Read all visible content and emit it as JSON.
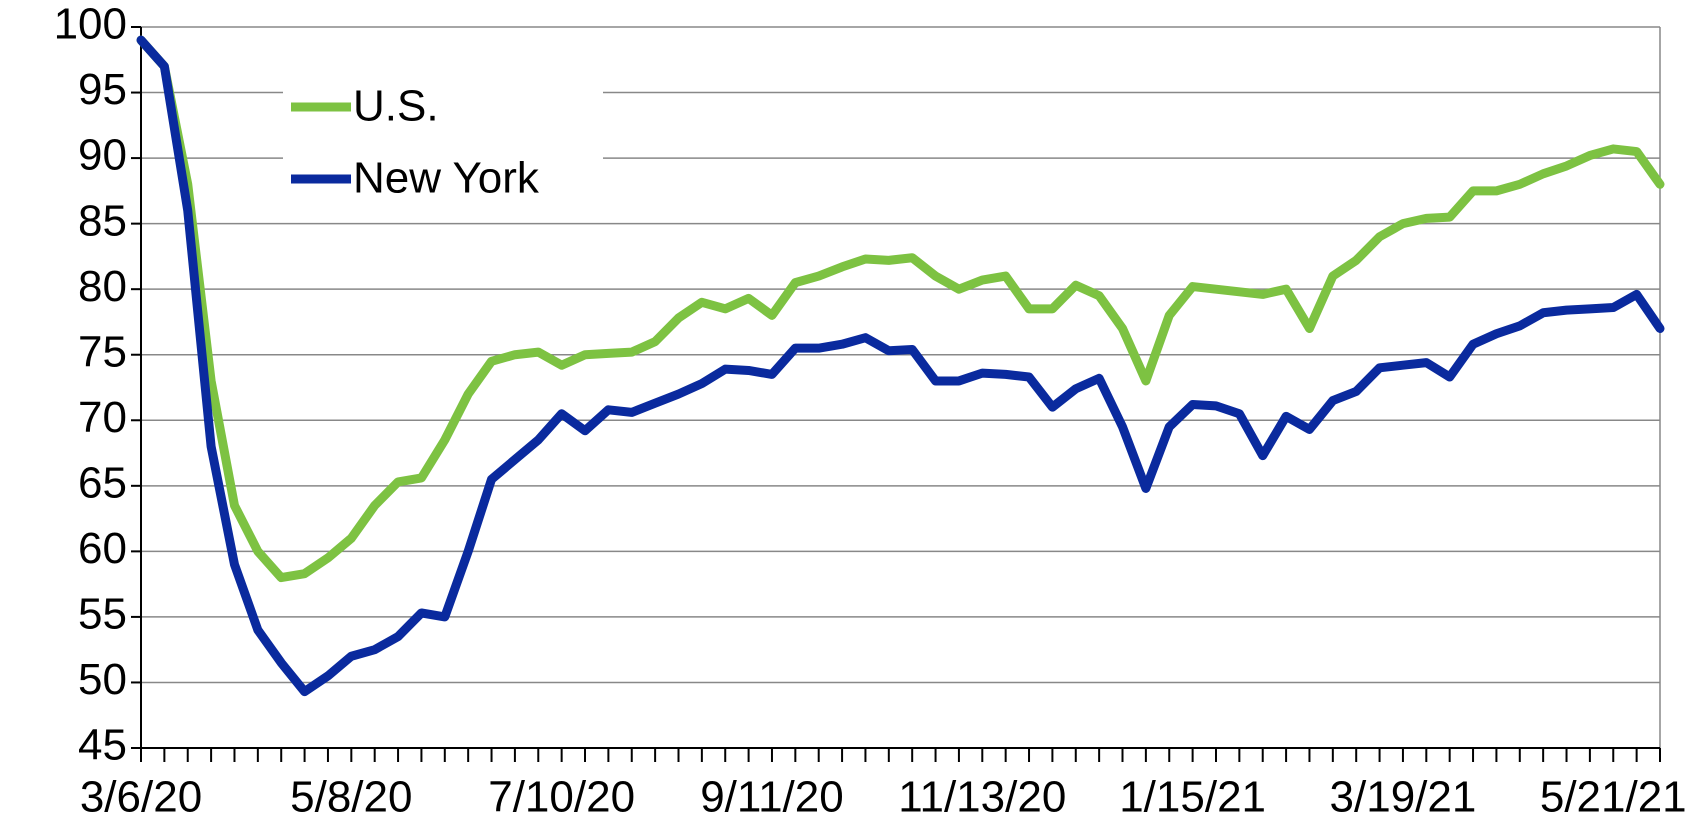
{
  "chart_data": {
    "type": "line",
    "categories": [
      "3/6/20",
      null,
      null,
      null,
      null,
      null,
      null,
      null,
      null,
      "5/8/20",
      null,
      null,
      null,
      null,
      null,
      null,
      null,
      null,
      "7/10/20",
      null,
      null,
      null,
      null,
      null,
      null,
      null,
      null,
      "9/11/20",
      null,
      null,
      null,
      null,
      null,
      null,
      null,
      null,
      "11/13/20",
      null,
      null,
      null,
      null,
      null,
      null,
      null,
      null,
      "1/15/21",
      null,
      null,
      null,
      null,
      null,
      null,
      null,
      null,
      "3/19/21",
      null,
      null,
      null,
      null,
      null,
      null,
      null,
      null,
      "5/21/21",
      null,
      null
    ],
    "series": [
      {
        "name": "U.S.",
        "color": "#7dc242",
        "values": [
          99,
          97,
          88,
          73,
          63.5,
          60,
          58,
          58.3,
          59.5,
          61,
          63.5,
          65.3,
          65.6,
          68.5,
          72,
          74.5,
          75,
          75.2,
          74.2,
          75,
          75.1,
          75.2,
          76,
          77.8,
          79,
          78.5,
          79.3,
          78,
          80.5,
          81,
          81.7,
          82.3,
          82.2,
          82.4,
          81,
          80,
          80.7,
          81,
          78.5,
          78.5,
          80.3,
          79.5,
          77,
          73,
          78,
          80.2,
          80,
          79.8,
          79.6,
          80,
          77,
          81,
          82.2,
          84,
          85,
          85.4,
          85.5,
          87.5,
          87.5,
          88,
          88.8,
          89.4,
          90.2,
          90.7,
          90.5,
          88
        ]
      },
      {
        "name": "New York",
        "color": "#0a2a9e",
        "values": [
          99,
          97,
          86,
          68,
          59,
          54,
          51.5,
          49.3,
          50.5,
          52,
          52.5,
          53.5,
          55.3,
          55,
          60,
          65.5,
          67,
          68.5,
          70.5,
          69.2,
          70.8,
          70.6,
          71.3,
          72,
          72.8,
          73.9,
          73.8,
          73.5,
          75.5,
          75.5,
          75.8,
          76.3,
          75.3,
          75.4,
          73,
          73,
          73.6,
          73.5,
          73.3,
          71,
          72.4,
          73.2,
          69.5,
          64.8,
          69.5,
          71.2,
          71.1,
          70.5,
          67.3,
          70.3,
          69.3,
          71.5,
          72.2,
          74,
          74.2,
          74.4,
          73.3,
          75.8,
          76.6,
          77.2,
          78.2,
          78.4,
          78.5,
          78.6,
          79.6,
          77
        ]
      }
    ],
    "ylim": [
      45,
      100
    ],
    "yticks": [
      45,
      50,
      55,
      60,
      65,
      70,
      75,
      80,
      85,
      90,
      95,
      100
    ],
    "grid": true,
    "legend": "upper left"
  }
}
